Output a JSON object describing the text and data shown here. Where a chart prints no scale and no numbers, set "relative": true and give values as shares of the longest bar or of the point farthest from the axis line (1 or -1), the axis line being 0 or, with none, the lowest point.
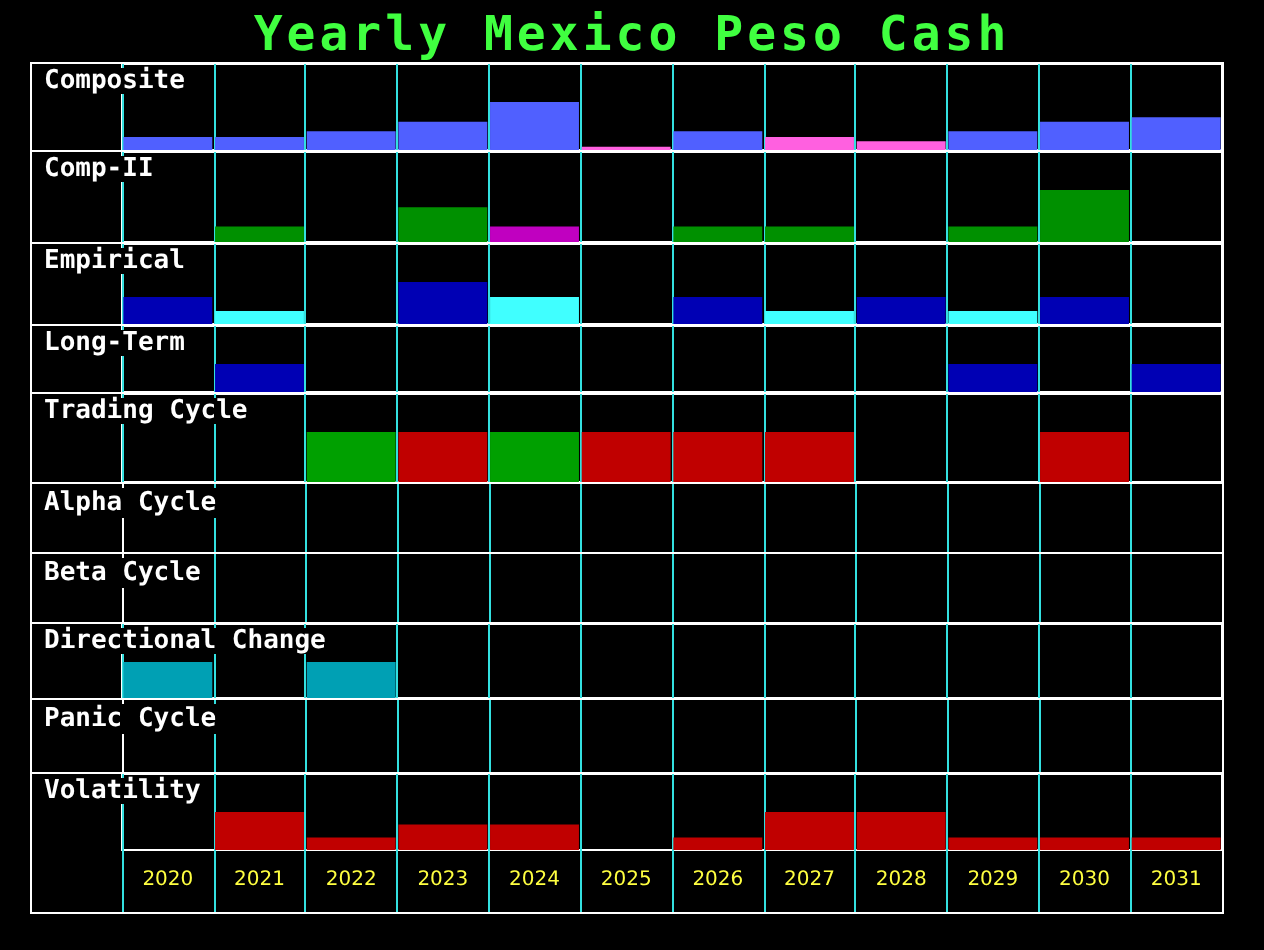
{
  "chart_data": [
    {
      "type": "other",
      "title": "Yearly Mexico Peso Cash"
    },
    {
      "type": "bar",
      "title": "Composite",
      "relative": true,
      "tick_labels": false,
      "grid": "x",
      "categories": [
        "2020",
        "2021",
        "2022",
        "2023",
        "2024",
        "2025",
        "2026",
        "2027",
        "2028",
        "2029",
        "2030",
        "2031"
      ],
      "values": [
        0.27,
        0.27,
        0.39,
        0.59,
        1,
        0.07,
        0.39,
        0.27,
        0.18,
        0.39,
        0.59,
        0.68
      ],
      "colors": [
        "#5060ff",
        "#5060ff",
        "#5060ff",
        "#5060ff",
        "#5060ff",
        "#ff60e0",
        "#5060ff",
        "#ff60e0",
        "#ff60e0",
        "#5060ff",
        "#5060ff",
        "#5060ff"
      ]
    },
    {
      "type": "bar",
      "title": "Comp-II",
      "relative": true,
      "tick_labels": false,
      "grid": "x",
      "categories": [
        "2020",
        "2021",
        "2022",
        "2023",
        "2024",
        "2025",
        "2026",
        "2027",
        "2028",
        "2029",
        "2030",
        "2031"
      ],
      "values": [
        null,
        0.3,
        null,
        0.67,
        0.3,
        null,
        0.3,
        0.3,
        null,
        0.3,
        1,
        null
      ],
      "colors": [
        null,
        "#009000",
        null,
        "#009000",
        "#c000c0",
        null,
        "#009000",
        "#009000",
        null,
        "#009000",
        "#009000",
        null
      ]
    },
    {
      "type": "bar",
      "title": "Empirical",
      "relative": true,
      "tick_labels": false,
      "grid": "x",
      "categories": [
        "2020",
        "2021",
        "2022",
        "2023",
        "2024",
        "2025",
        "2026",
        "2027",
        "2028",
        "2029",
        "2030",
        "2031"
      ],
      "values": [
        0.64,
        0.31,
        null,
        1,
        0.64,
        null,
        0.64,
        0.31,
        0.64,
        0.31,
        0.64,
        null
      ],
      "colors": [
        "#0000b4",
        "#40ffff",
        null,
        "#0000b4",
        "#40ffff",
        null,
        "#0000b4",
        "#40ffff",
        "#0000b4",
        "#40ffff",
        "#0000b4",
        null
      ]
    },
    {
      "type": "bar",
      "title": "Long-Term",
      "relative": true,
      "tick_labels": false,
      "grid": "x",
      "categories": [
        "2020",
        "2021",
        "2022",
        "2023",
        "2024",
        "2025",
        "2026",
        "2027",
        "2028",
        "2029",
        "2030",
        "2031"
      ],
      "values": [
        null,
        1,
        null,
        null,
        null,
        null,
        null,
        null,
        null,
        1,
        null,
        1
      ],
      "color": "#0000b4"
    },
    {
      "type": "bar",
      "title": "Trading Cycle",
      "relative": true,
      "tick_labels": false,
      "grid": "x",
      "categories": [
        "2020",
        "2021",
        "2022",
        "2023",
        "2024",
        "2025",
        "2026",
        "2027",
        "2028",
        "2029",
        "2030",
        "2031"
      ],
      "values": [
        null,
        null,
        1,
        1,
        1,
        1,
        1,
        1,
        null,
        null,
        1,
        null
      ],
      "colors": [
        null,
        null,
        "#00a000",
        "#c00000",
        "#00a000",
        "#c00000",
        "#c00000",
        "#c00000",
        null,
        null,
        "#c00000",
        null
      ]
    },
    {
      "type": "other",
      "title": "Alpha Cycle"
    },
    {
      "type": "other",
      "title": "Beta Cycle"
    },
    {
      "type": "bar",
      "title": "Directional Change",
      "relative": true,
      "tick_labels": false,
      "grid": "x",
      "categories": [
        "2020",
        "2021",
        "2022",
        "2023",
        "2024",
        "2025",
        "2026",
        "2027",
        "2028",
        "2029",
        "2030",
        "2031"
      ],
      "values": [
        1,
        null,
        1,
        null,
        null,
        null,
        null,
        null,
        null,
        null,
        null,
        null
      ],
      "color": "#00a0b4"
    },
    {
      "type": "other",
      "title": "Panic Cycle"
    },
    {
      "type": "bar",
      "title": "Volatility",
      "relative": true,
      "tick_labels": "x",
      "grid": "x",
      "categories": [
        "2020",
        "2021",
        "2022",
        "2023",
        "2024",
        "2025",
        "2026",
        "2027",
        "2028",
        "2029",
        "2030",
        "2031"
      ],
      "values": [
        null,
        1,
        0.33,
        0.67,
        0.67,
        null,
        0.33,
        1,
        1,
        0.33,
        0.33,
        0.33
      ],
      "color": "#c00000"
    }
  ]
}
